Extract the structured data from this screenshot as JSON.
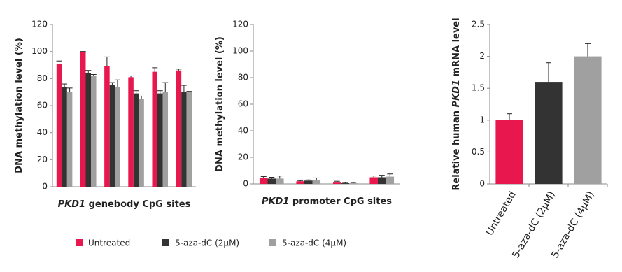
{
  "chart_data": [
    {
      "type": "bar",
      "xlabel": [
        {
          "text": "PKD1",
          "italic": true
        },
        {
          "text": " genebody CpG sites"
        }
      ],
      "ylabel": [
        {
          "text": "DNA methylation level (%)"
        }
      ],
      "categories": [
        null,
        null,
        null,
        null,
        null,
        null
      ],
      "ylim": [
        0,
        120
      ],
      "yticks": [
        0,
        20,
        40,
        60,
        80,
        100,
        120
      ],
      "legend": "bottom",
      "series": [
        {
          "name": "Untreated",
          "color": "#e8174e",
          "values": [
            91,
            100,
            89,
            81,
            85,
            86
          ],
          "errors": [
            2,
            0,
            7,
            1,
            3,
            1
          ]
        },
        {
          "name": "5-aza-dC (2μM)",
          "color": "#333333",
          "values": [
            74,
            84,
            75,
            69,
            69,
            70
          ],
          "errors": [
            2,
            2,
            2,
            2,
            2,
            5
          ]
        },
        {
          "name": "5-aza-dC (4μM)",
          "color": "#a0a0a0",
          "values": [
            70,
            82,
            74,
            65,
            70,
            70
          ],
          "errors": [
            3,
            1,
            5,
            2,
            7,
            0.5
          ]
        }
      ]
    },
    {
      "type": "bar",
      "xlabel": [
        {
          "text": "PKD1",
          "italic": true
        },
        {
          "text": " promoter CpG sites"
        }
      ],
      "ylabel": [
        {
          "text": "DNA methylation level (%)"
        }
      ],
      "categories": [
        null,
        null,
        null,
        null
      ],
      "ylim": [
        0,
        120
      ],
      "yticks": [
        0,
        20,
        40,
        60,
        80,
        100,
        120
      ],
      "series": [
        {
          "color": "#e8174e",
          "values": [
            4.5,
            2,
            1,
            5
          ],
          "errors": [
            1,
            0.5,
            1,
            1
          ]
        },
        {
          "color": "#333333",
          "values": [
            4,
            2.5,
            0.5,
            5
          ],
          "errors": [
            1,
            0.5,
            0.5,
            1.5
          ]
        },
        {
          "color": "#a0a0a0",
          "values": [
            4,
            3,
            0.5,
            5.5
          ],
          "errors": [
            2,
            1.5,
            0.5,
            2
          ]
        }
      ]
    },
    {
      "type": "bar",
      "ylabel": [
        {
          "text": "Relative human "
        },
        {
          "text": "PKD1",
          "italic": true
        },
        {
          "text": " mRNA level"
        }
      ],
      "categories": [
        "Untreated",
        "5-aza-dC (2μM)",
        "5-aza-dC (4μM)"
      ],
      "ylim": [
        0,
        2.5
      ],
      "yticks": [
        0,
        0.5,
        1,
        1.5,
        2,
        2.5
      ],
      "colors": [
        "#e8174e",
        "#333333",
        "#a0a0a0"
      ],
      "values": [
        1,
        1.6,
        2
      ],
      "errors": [
        0.1,
        0.3,
        0.2
      ]
    }
  ]
}
